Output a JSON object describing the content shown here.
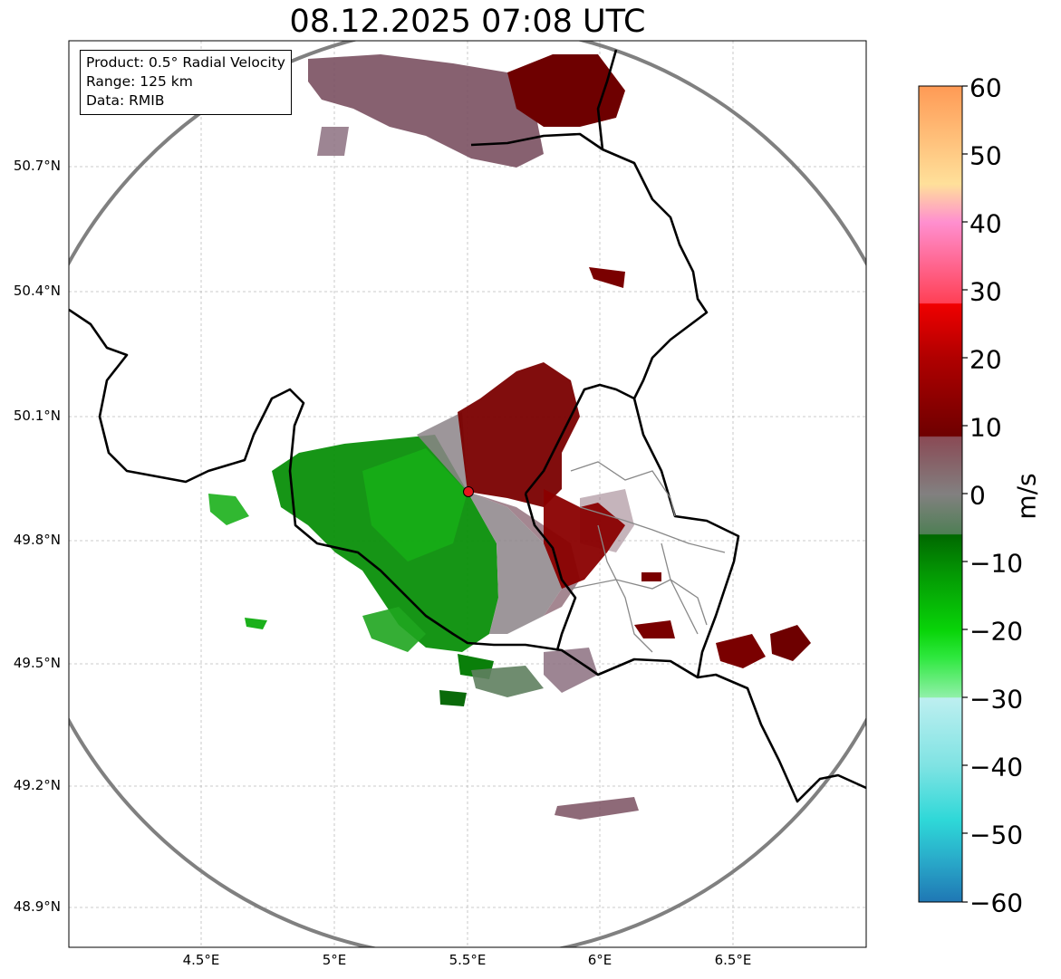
{
  "title": "08.12.2025 07:08 UTC",
  "info": {
    "product": "Product: 0.5° Radial Velocity",
    "range": "Range: 125 km",
    "source": "Data: RMIB"
  },
  "axes": {
    "lat_labels": [
      "50.7°N",
      "50.4°N",
      "50.1°N",
      "49.8°N",
      "49.5°N",
      "49.2°N",
      "48.9°N"
    ],
    "lon_labels": [
      "4.5°E",
      "5°E",
      "5.5°E",
      "6°E",
      "6.5°E"
    ]
  },
  "colorbar": {
    "label": "m/s",
    "tick_labels": [
      "60",
      "50",
      "40",
      "30",
      "20",
      "10",
      "0",
      "−10",
      "−20",
      "−30",
      "−40",
      "−50",
      "−60"
    ]
  },
  "map_data": {
    "type": "radar_ppi",
    "radar_location": {
      "lon": 5.5,
      "lat": 49.91
    },
    "range_km": 125,
    "lon_range": [
      4.0,
      7.0
    ],
    "lat_range": [
      48.8,
      50.98
    ],
    "velocity_range_mps": [
      -60,
      60
    ],
    "colors": {
      "grid": "#bbbbbb",
      "border": "#000000",
      "region_border": "#888888",
      "range_ring": "#808080",
      "radar_marker": "#e8141c",
      "outbound": "#7a0000",
      "inbound": "#0a9a0a",
      "near_zero": "#8a7a80"
    }
  }
}
